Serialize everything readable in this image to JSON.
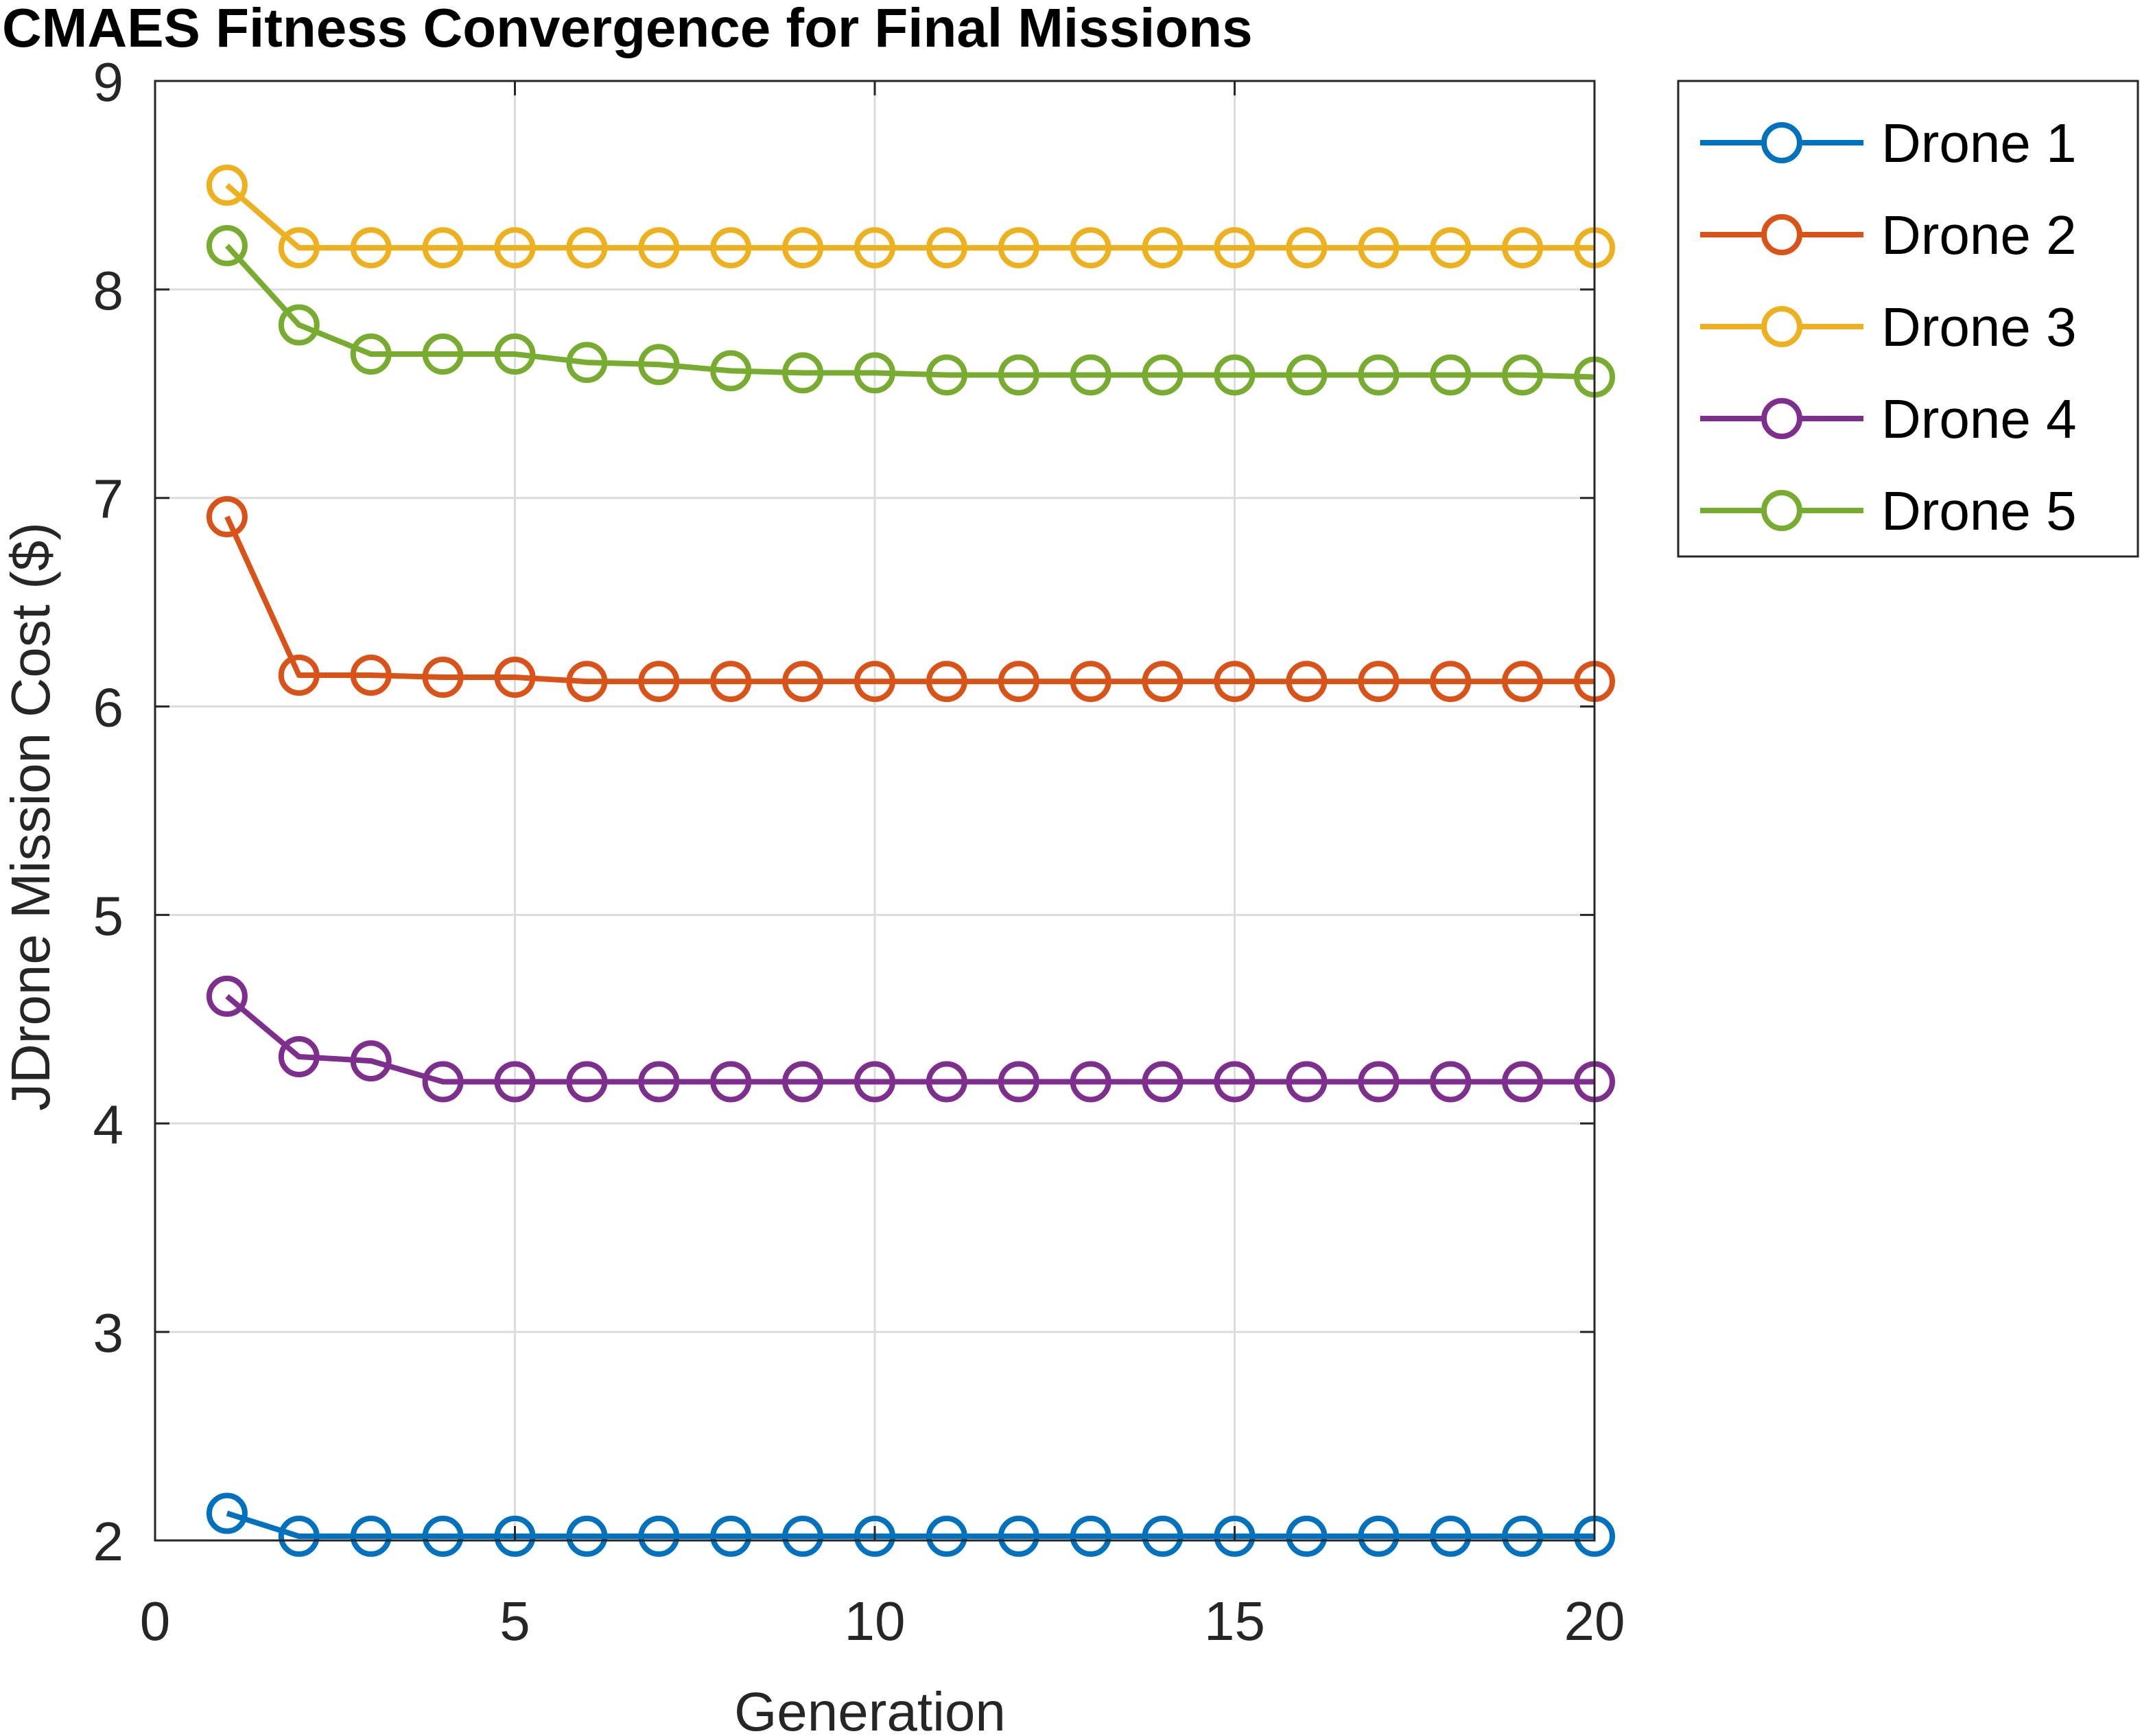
{
  "chart_data": {
    "type": "line",
    "title": "CMAES Fitness Convergence for Final Missions",
    "xlabel": "Generation",
    "ylabel": "JDrone Mission Cost ($)",
    "xlim": [
      0,
      20
    ],
    "ylim": [
      2,
      9
    ],
    "xticks": [
      "0",
      "5",
      "10",
      "15",
      "20"
    ],
    "yticks": [
      "2",
      "3",
      "4",
      "5",
      "6",
      "7",
      "8",
      "9"
    ],
    "grid": true,
    "legend_position": "outside top-right",
    "x": [
      1,
      2,
      3,
      4,
      5,
      6,
      7,
      8,
      9,
      10,
      11,
      12,
      13,
      14,
      15,
      16,
      17,
      18,
      19,
      20
    ],
    "series": [
      {
        "name": "Drone 1",
        "color": "#0072BD",
        "values": [
          2.13,
          2.02,
          2.02,
          2.02,
          2.02,
          2.02,
          2.02,
          2.02,
          2.02,
          2.02,
          2.02,
          2.02,
          2.02,
          2.02,
          2.02,
          2.02,
          2.02,
          2.02,
          2.02,
          2.02
        ]
      },
      {
        "name": "Drone 2",
        "color": "#D95319",
        "values": [
          6.91,
          6.15,
          6.15,
          6.14,
          6.14,
          6.12,
          6.12,
          6.12,
          6.12,
          6.12,
          6.12,
          6.12,
          6.12,
          6.12,
          6.12,
          6.12,
          6.12,
          6.12,
          6.12,
          6.12
        ]
      },
      {
        "name": "Drone 3",
        "color": "#EDB120",
        "values": [
          8.5,
          8.2,
          8.2,
          8.2,
          8.2,
          8.2,
          8.2,
          8.2,
          8.2,
          8.2,
          8.2,
          8.2,
          8.2,
          8.2,
          8.2,
          8.2,
          8.2,
          8.2,
          8.2,
          8.2
        ]
      },
      {
        "name": "Drone 4",
        "color": "#7E2F8E",
        "values": [
          4.61,
          4.32,
          4.3,
          4.2,
          4.2,
          4.2,
          4.2,
          4.2,
          4.2,
          4.2,
          4.2,
          4.2,
          4.2,
          4.2,
          4.2,
          4.2,
          4.2,
          4.2,
          4.2,
          4.2
        ]
      },
      {
        "name": "Drone 5",
        "color": "#77AC30",
        "values": [
          8.21,
          7.83,
          7.69,
          7.69,
          7.69,
          7.65,
          7.64,
          7.61,
          7.6,
          7.6,
          7.59,
          7.59,
          7.59,
          7.59,
          7.59,
          7.59,
          7.59,
          7.59,
          7.59,
          7.58
        ]
      }
    ]
  }
}
